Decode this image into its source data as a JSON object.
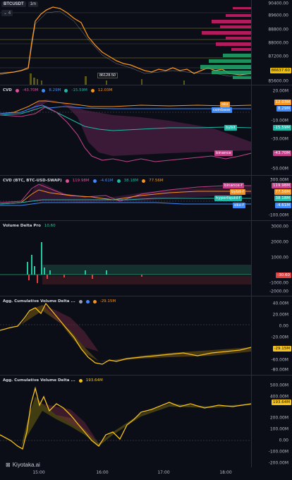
{
  "header": {
    "symbol": "BTCUSDT",
    "timeframe": "1m",
    "collapse_label": "4"
  },
  "price_pane": {
    "ticks": [
      "90400.00",
      "89600.00",
      "88800.00",
      "88000.00",
      "87200.00",
      "86400.00",
      "85600.00"
    ],
    "current_price_tag": "86637.60",
    "low_label": "86128.50",
    "accent_tag_color": "#f0c000"
  },
  "cvd_pane": {
    "title": "CVD",
    "legend": [
      {
        "value": "-43.70M",
        "color": "#e04fa0"
      },
      {
        "value": "8.29M",
        "color": "#3d8bfd"
      },
      {
        "value": "-15.59M",
        "color": "#1fb8a8"
      },
      {
        "value": "12.03M",
        "color": "#f7931a"
      }
    ],
    "ticks": [
      "20.00M",
      "10.00M",
      "0.00",
      "-10.00M",
      "-20.00M",
      "-30.00M",
      "-40.00M",
      "-50.00M"
    ],
    "tags": [
      {
        "label": "okx",
        "value": "12.03M",
        "color": "#f7931a"
      },
      {
        "label": "coinbase",
        "value": "8.29M",
        "color": "#3d8bfd"
      },
      {
        "label": "bybit",
        "value": "-15.59M",
        "color": "#1fb8a8"
      },
      {
        "label": "binance",
        "value": "-43.70M",
        "color": "#c2418a"
      }
    ]
  },
  "cvd_swap_pane": {
    "title": "CVD (BTC, BTC-USD-SWAP)",
    "legend": [
      {
        "value": "119.98M",
        "color": "#e04fa0"
      },
      {
        "value": "-4.61M",
        "color": "#3d8bfd"
      },
      {
        "value": "38.18M",
        "color": "#1fb8a8"
      },
      {
        "value": "77.56M",
        "color": "#f7931a"
      }
    ],
    "ticks": [
      "300.00M",
      "200.00M",
      "100.00M",
      "0.00",
      "-100.00M"
    ],
    "tags": [
      {
        "label": "binance-f",
        "value": "119.98M",
        "color": "#c2418a"
      },
      {
        "label": "bybit-f",
        "value": "77.56M",
        "color": "#f7931a"
      },
      {
        "label": "hyperliquid-f",
        "value": "38.18M",
        "color": "#1fb8a8"
      },
      {
        "label": "okx-f",
        "value": "-4.61M",
        "color": "#3d8bfd"
      }
    ]
  },
  "vdp_pane": {
    "title": "Volume Delta Pro",
    "legend_value": "10.60",
    "ticks": [
      "3000.00",
      "2000.00",
      "1000.00",
      "0.00",
      "-1000.00",
      "-2000.00"
    ],
    "tag_value": "-30.60"
  },
  "agg1_pane": {
    "title": "Agg. Cumulative Volume Delta ...",
    "legend_value": "-29.15M",
    "ticks": [
      "40.00M",
      "20.00M",
      "0.00",
      "-20.00M",
      "-40.00M",
      "-60.00M",
      "-80.00M"
    ],
    "tag_value": "-29.15M"
  },
  "agg2_pane": {
    "title": "Agg. Cumulative Volume Delta ...",
    "legend_value": "193.64M",
    "ticks": [
      "500.00M",
      "400.00M",
      "300.00M",
      "200.00M",
      "100.00M",
      "0.00",
      "-100.00M",
      "-200.00M"
    ],
    "tag_value": "193.64M"
  },
  "time_axis": [
    "15:00",
    "16:00",
    "17:00",
    "18:00"
  ],
  "brand": "Kiyotaka.ai"
}
